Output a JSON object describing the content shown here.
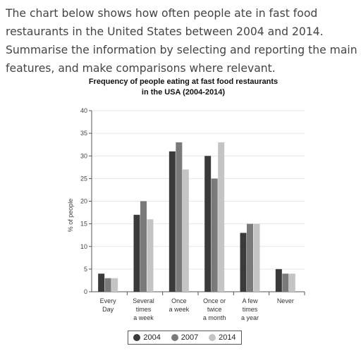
{
  "intro": {
    "line1": "The chart below shows how often people ate in fast food",
    "line2": "restaurants in the United States between 2004 and 2014.",
    "line3": "Summarise the information by selecting and reporting the main",
    "line4": "features, and make comparisons where relevant."
  },
  "colors": {
    "2004": "#3a3a3a",
    "2007": "#7a7a7a",
    "2014": "#c4c4c4",
    "text": "#444444",
    "grid": "#e6e6e6"
  },
  "chart_data": {
    "type": "bar",
    "title_line1": "Frequency of people eating at fast food restaurants",
    "title_line2": "in the USA (2004-2014)",
    "ylabel": "% of people",
    "xlabel": "",
    "ylim": [
      0,
      40
    ],
    "yticks": [
      0,
      5,
      10,
      15,
      20,
      25,
      30,
      35,
      40
    ],
    "grid": true,
    "legend_position": "bottom",
    "categories": [
      [
        "Every",
        "Day"
      ],
      [
        "Several",
        "times",
        "a week"
      ],
      [
        "Once",
        "a week"
      ],
      [
        "Once or",
        "twice",
        "a month"
      ],
      [
        "A few",
        "times",
        "a year"
      ],
      [
        "Never"
      ]
    ],
    "series": [
      {
        "name": "2004",
        "values": [
          4,
          17,
          31,
          30,
          13,
          5
        ]
      },
      {
        "name": "2007",
        "values": [
          3,
          20,
          33,
          25,
          15,
          4
        ]
      },
      {
        "name": "2014",
        "values": [
          3,
          16,
          27,
          33,
          15,
          4
        ]
      }
    ]
  }
}
